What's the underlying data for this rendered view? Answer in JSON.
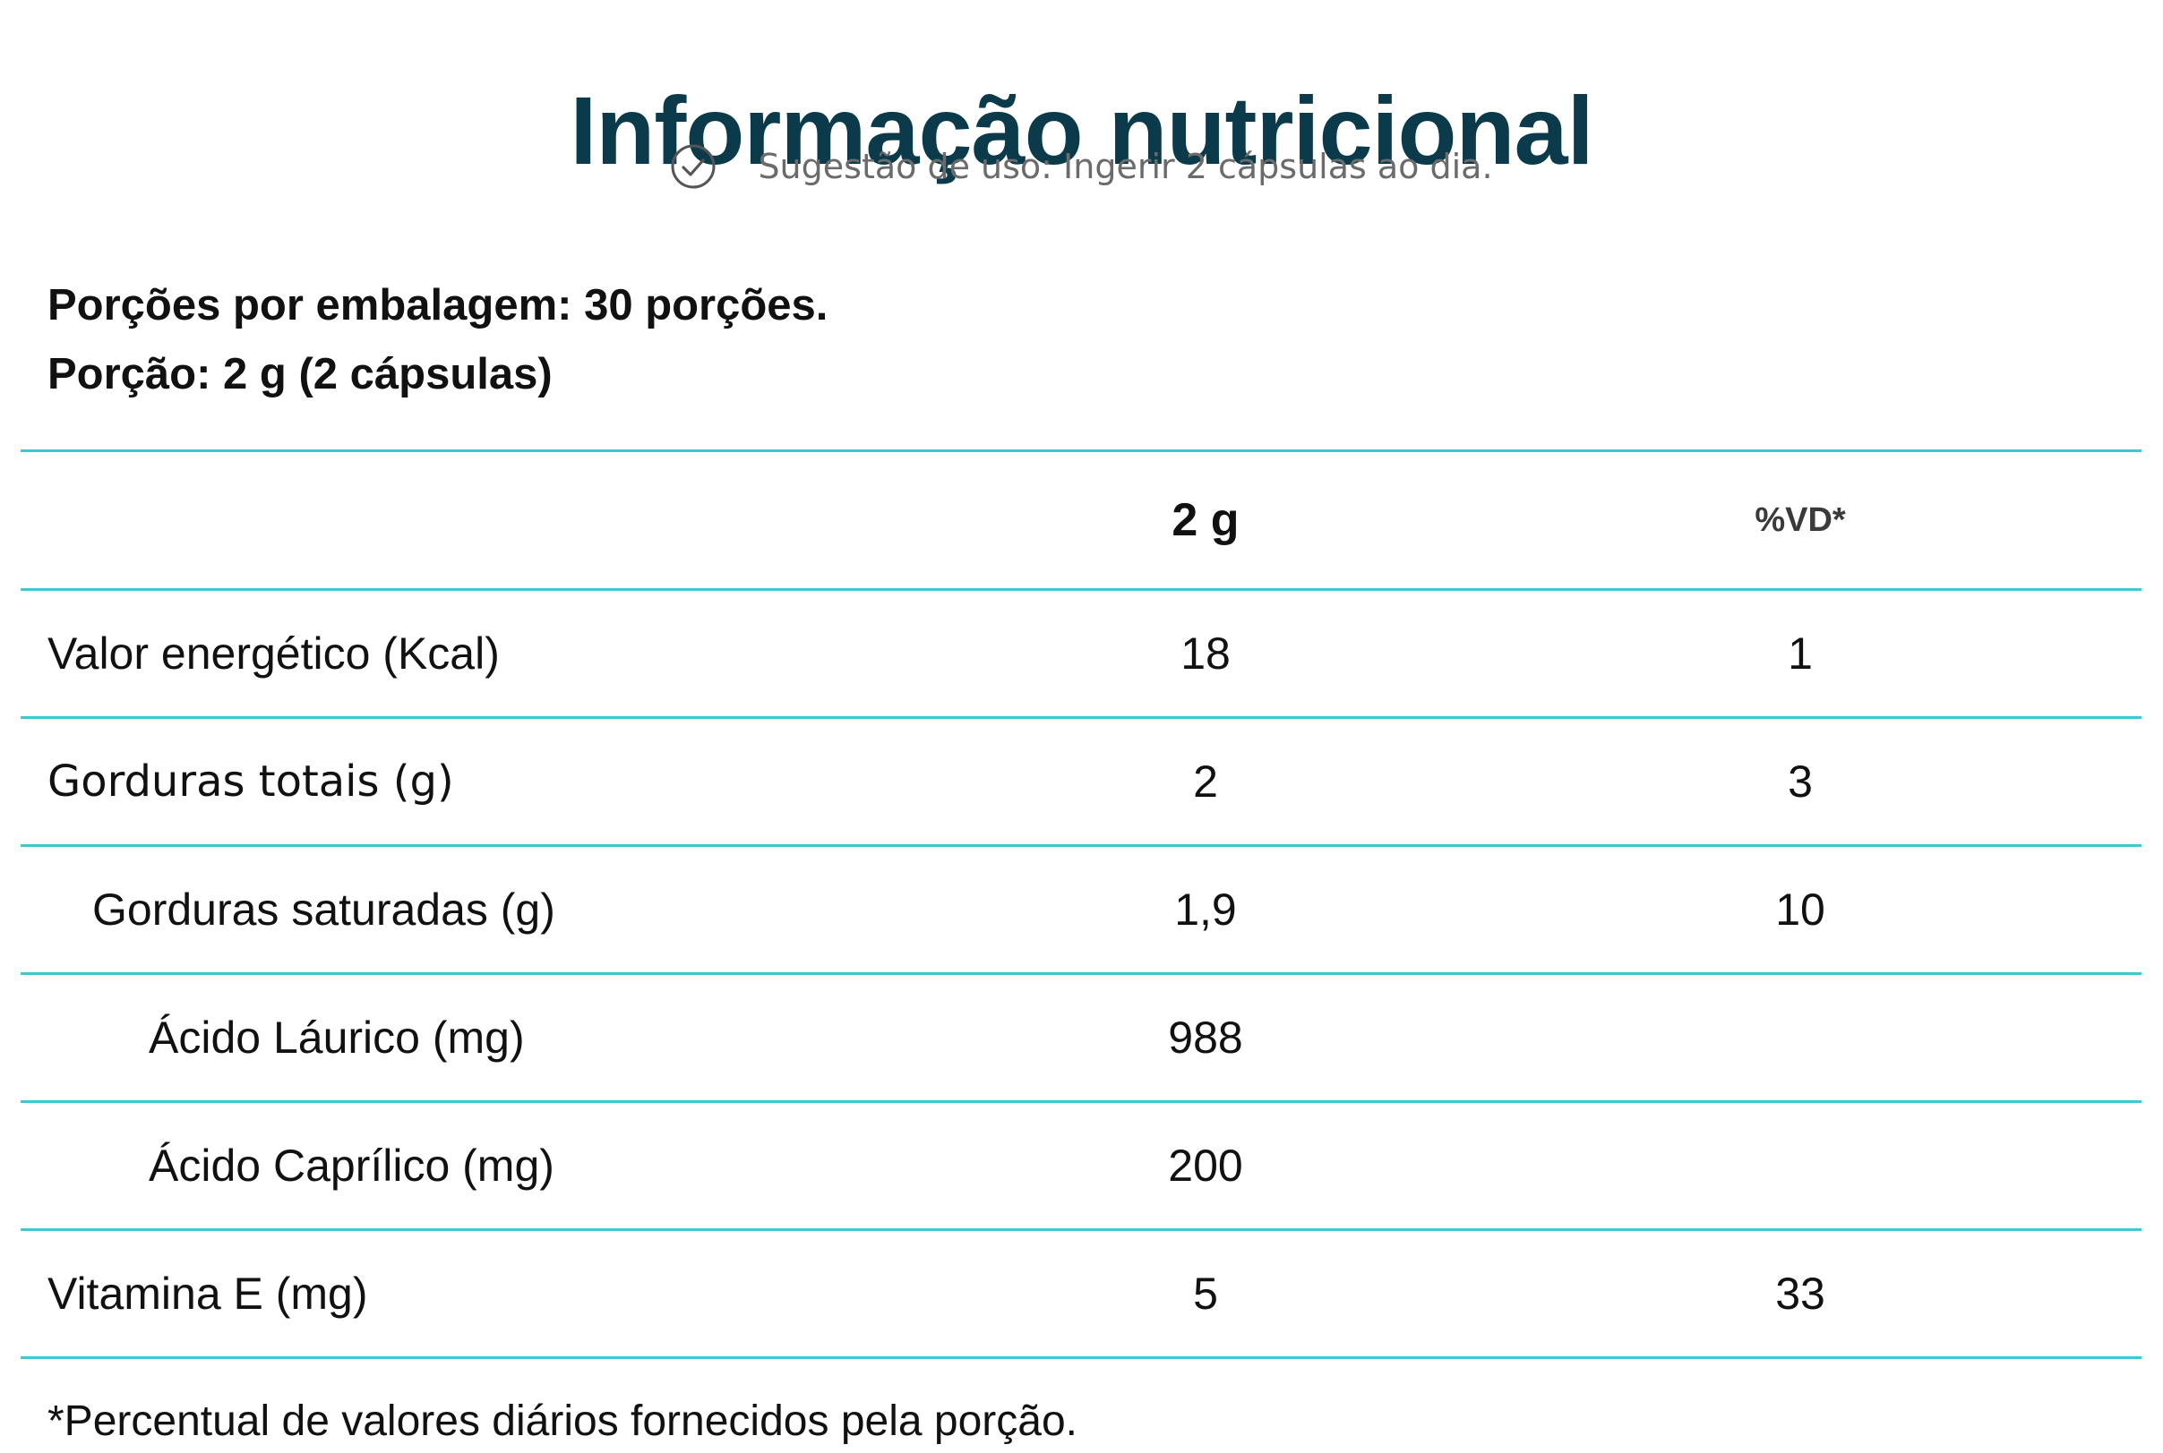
{
  "title": "Informação nutricional",
  "usage": {
    "icon": "check-circle-icon",
    "text": "Sugestão de uso: Ingerir 2 cápsulas ao dia."
  },
  "serving": {
    "per_package": "Porções por embalagem: 30 porções.",
    "portion": "Porção: 2 g (2 cápsulas)"
  },
  "table": {
    "header": {
      "name": "",
      "amount": "2 g",
      "dv": "%VD*"
    },
    "rows": [
      {
        "name": "Valor energético (Kcal)",
        "amount": "18",
        "dv": "1"
      },
      {
        "name": "Gorduras totais (g)",
        "amount": "2",
        "dv": "3"
      },
      {
        "name": "Gorduras saturadas (g)",
        "amount": "1,9",
        "dv": "10"
      },
      {
        "name": "Ácido Láurico (mg)",
        "amount": "988",
        "dv": ""
      },
      {
        "name": "Ácido Caprílico (mg)",
        "amount": "200",
        "dv": ""
      },
      {
        "name": "Vitamina E (mg)",
        "amount": "5",
        "dv": "33"
      }
    ]
  },
  "footnote": "*Percentual de valores diários fornecidos pela porção.",
  "colors": {
    "title": "#0b3a4a",
    "divider": "#3cc8d4",
    "muted_text": "#6b6b6b"
  }
}
